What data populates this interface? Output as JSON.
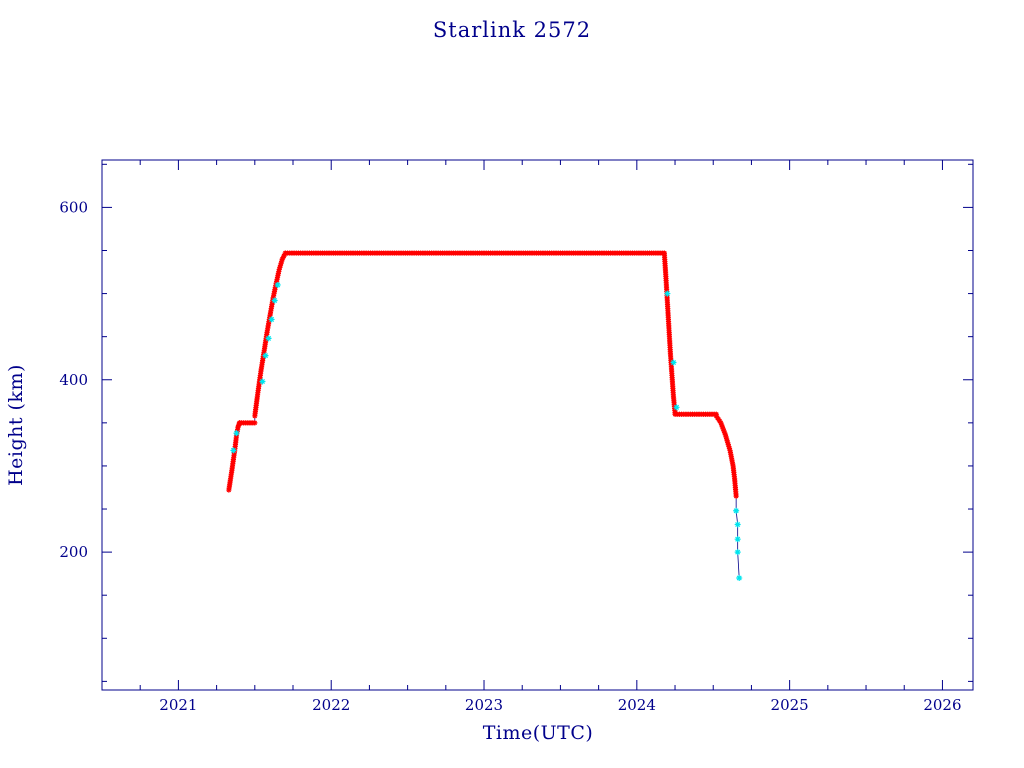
{
  "colors": {
    "axis": "#00008b",
    "main_series": "#ff0000",
    "alt_series": "#00e5ee",
    "connector": "#00008b",
    "background": "#ffffff"
  },
  "chart_data": {
    "type": "scatter",
    "title": "Starlink 2572",
    "xlabel": "Time(UTC)",
    "ylabel": "Height (km)",
    "xlim": [
      2020.5,
      2026.2
    ],
    "ylim": [
      40,
      655
    ],
    "x_ticks": [
      2021,
      2022,
      2023,
      2024,
      2025,
      2026
    ],
    "x_tick_labels": [
      "2021",
      "2022",
      "2023",
      "2024",
      "2025",
      "2026"
    ],
    "y_ticks": [
      200,
      400,
      600
    ],
    "y_tick_labels": [
      "200",
      "400",
      "600"
    ],
    "grid": false,
    "series": [
      {
        "marker": "asterisk",
        "color": "#ff0000",
        "segments": [
          {
            "x": [
              2021.33,
              2021.35,
              2021.37,
              2021.38,
              2021.39,
              2021.4
            ],
            "y": [
              272,
              295,
              320,
              335,
              345,
              350
            ]
          },
          {
            "x": [
              2021.4,
              2021.45,
              2021.5
            ],
            "y": [
              350,
              350,
              350
            ]
          },
          {
            "x": [
              2021.5,
              2021.52,
              2021.54,
              2021.56,
              2021.58,
              2021.6,
              2021.62,
              2021.64,
              2021.66,
              2021.68,
              2021.7
            ],
            "y": [
              358,
              385,
              410,
              432,
              455,
              475,
              495,
              512,
              528,
              540,
              547
            ]
          },
          {
            "x": [
              2021.7,
              2022.0,
              2022.5,
              2023.0,
              2023.5,
              2024.0,
              2024.18
            ],
            "y": [
              547,
              547,
              547,
              547,
              547,
              547,
              547
            ]
          },
          {
            "x": [
              2024.18,
              2024.19,
              2024.2,
              2024.21,
              2024.22,
              2024.23,
              2024.24,
              2024.25
            ],
            "y": [
              547,
              520,
              490,
              460,
              430,
              405,
              380,
              362
            ]
          },
          {
            "x": [
              2024.25,
              2024.35,
              2024.45,
              2024.52
            ],
            "y": [
              360,
              360,
              360,
              360
            ]
          },
          {
            "x": [
              2024.52,
              2024.55,
              2024.58,
              2024.61,
              2024.63,
              2024.64,
              2024.65
            ],
            "y": [
              358,
              350,
              336,
              318,
              300,
              285,
              265
            ]
          }
        ]
      },
      {
        "marker": "asterisk",
        "color": "#00e5ee",
        "x": [
          2021.36,
          2021.38,
          2021.55,
          2021.57,
          2021.59,
          2021.61,
          2021.63,
          2021.65,
          2024.2,
          2024.24,
          2024.26,
          2024.65,
          2024.66,
          2024.66,
          2024.66,
          2024.67
        ],
        "y": [
          318,
          338,
          398,
          428,
          448,
          470,
          492,
          510,
          500,
          420,
          368,
          248,
          232,
          215,
          200,
          170
        ]
      }
    ]
  }
}
